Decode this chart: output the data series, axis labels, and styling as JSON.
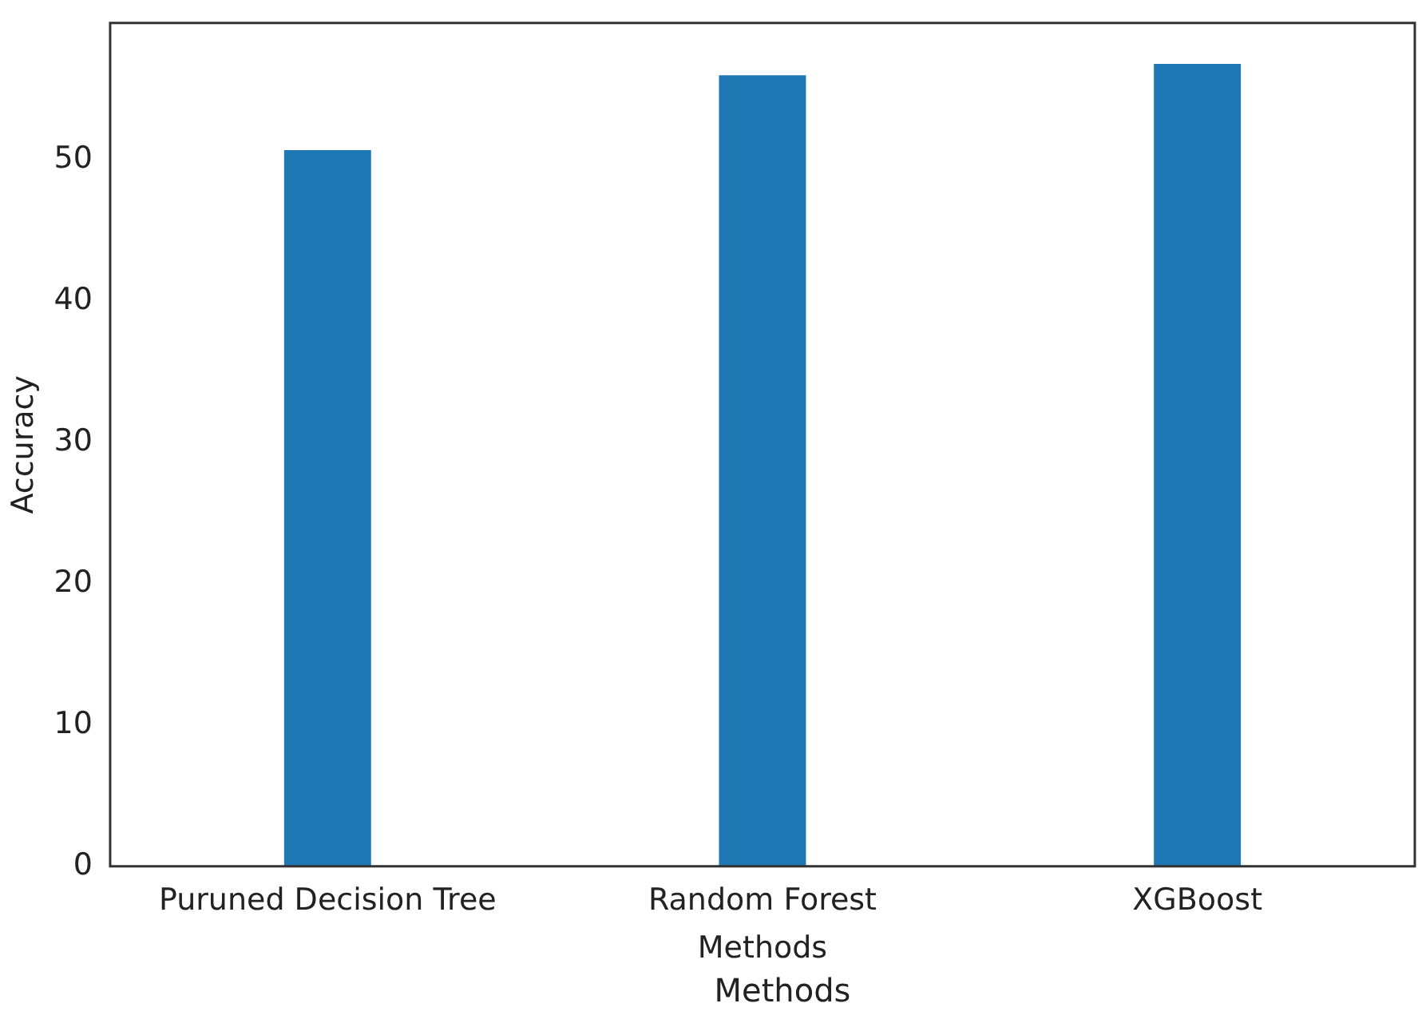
{
  "chart_data": {
    "type": "bar",
    "xlabel": "Methods",
    "ylabel": "Accuracy",
    "categories": [
      "Puruned Decision Tree",
      "Random Forest",
      "XGBoost"
    ],
    "values": [
      50.7,
      56.0,
      56.8
    ],
    "color": "#1f77b4",
    "ylim": [
      0,
      59.7
    ],
    "yticks": [
      0,
      10,
      20,
      30,
      40,
      50
    ],
    "grid": false,
    "legend": false,
    "annotations": [
      "Methods"
    ]
  }
}
